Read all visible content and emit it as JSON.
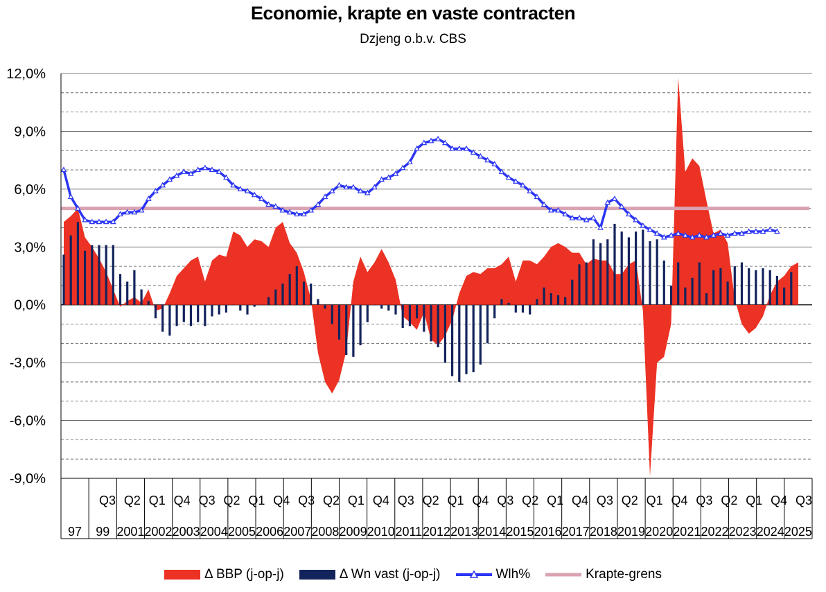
{
  "chart_data": {
    "type": "area",
    "title": "Economie, krapte en vaste contracten",
    "subtitle": "Dzjeng o.b.v. CBS",
    "ylim": [
      -9.0,
      12.0
    ],
    "y_ticks": [
      "12,0%",
      "9,0%",
      "6,0%",
      "3,0%",
      "0,0%",
      "-3,0%",
      "-6,0%",
      "-9,0%"
    ],
    "y_tick_values": [
      12,
      9,
      6,
      3,
      0,
      -3,
      -6,
      -9
    ],
    "grid": "dashed horizontal lines every 1.0 point",
    "x_start": "1999 Q1",
    "x_end": "2025 Q3",
    "quarter_labels": [
      "Q3",
      "Q2",
      "Q1",
      "Q4",
      "Q3",
      "Q2",
      "Q1",
      "Q4",
      "Q3",
      "Q2",
      "Q1",
      "Q4",
      "Q3",
      "Q2",
      "Q1",
      "Q4",
      "Q3",
      "Q2",
      "Q1",
      "Q4",
      "Q3",
      "Q2",
      "Q1",
      "Q4",
      "Q3",
      "Q2",
      "Q1",
      "Q4",
      "Q3"
    ],
    "year_labels": [
      "97",
      "99",
      "2001",
      "2002",
      "2003",
      "2004",
      "2005",
      "2006",
      "2007",
      "2008",
      "2009",
      "2010",
      "2011",
      "2012",
      "2013",
      "2014",
      "2015",
      "2016",
      "2017",
      "2018",
      "2019",
      "2020",
      "2021",
      "2022",
      "2023",
      "2024",
      "2025"
    ],
    "legend_position": "bottom",
    "series": [
      {
        "name": "Δ BBP (j-op-j)",
        "kind": "area",
        "color": "#ec3224",
        "values": [
          4.3,
          4.6,
          5.0,
          3.5,
          3.0,
          2.4,
          1.7,
          0.8,
          -0.1,
          0.2,
          0.4,
          0.1,
          0.8,
          -0.3,
          -0.2,
          0.6,
          1.5,
          1.9,
          2.3,
          2.5,
          1.2,
          2.3,
          2.6,
          2.5,
          3.8,
          3.6,
          3.0,
          3.4,
          3.3,
          3.0,
          4.0,
          4.3,
          3.2,
          2.7,
          1.7,
          0.3,
          -2.5,
          -4.0,
          -4.6,
          -3.9,
          -2.4,
          1.2,
          2.5,
          1.7,
          2.2,
          2.9,
          2.2,
          1.3,
          -0.6,
          -0.9,
          -1.3,
          -0.4,
          -1.8,
          -2.1,
          -1.6,
          -0.8,
          0.6,
          1.5,
          1.7,
          1.6,
          1.9,
          1.9,
          2.1,
          2.5,
          1.2,
          2.3,
          2.3,
          2.1,
          2.5,
          3.0,
          3.2,
          3.0,
          2.7,
          2.7,
          2.1,
          2.4,
          2.3,
          2.3,
          1.6,
          1.6,
          2.1,
          2.3,
          -0.3,
          -8.9,
          -3.0,
          -2.7,
          -1.0,
          11.8,
          6.9,
          7.6,
          7.2,
          5.4,
          3.7,
          3.9,
          3.2,
          0.3,
          -1.0,
          -1.5,
          -1.2,
          -0.6,
          0.5,
          1.2,
          1.5,
          2.0,
          2.2
        ],
        "estimated": true
      },
      {
        "name": "Δ Wn vast (j-op-j)",
        "kind": "bar",
        "color": "#13235c",
        "values": [
          2.6,
          3.6,
          4.3,
          2.8,
          3.1,
          3.1,
          3.1,
          3.1,
          1.6,
          1.2,
          1.8,
          0.8,
          0.2,
          -0.7,
          -1.4,
          -1.6,
          -1.1,
          -0.9,
          -1.1,
          -0.9,
          -1.1,
          -0.6,
          -0.5,
          -0.4,
          0.0,
          -0.3,
          -0.5,
          -0.1,
          0.0,
          0.4,
          0.8,
          1.1,
          1.6,
          2.0,
          1.2,
          1.1,
          0.3,
          -0.2,
          -1.0,
          -1.8,
          -2.6,
          -2.7,
          -2.1,
          -0.9,
          0.0,
          -0.2,
          -0.3,
          -0.5,
          -1.2,
          -1.1,
          -0.7,
          -1.4,
          -1.9,
          -2.2,
          -3.0,
          -3.7,
          -4.0,
          -3.6,
          -3.5,
          -3.1,
          -2.0,
          -0.7,
          0.3,
          0.1,
          -0.4,
          -0.4,
          -0.5,
          0.3,
          0.9,
          0.6,
          0.5,
          0.4,
          1.3,
          2.1,
          2.2,
          3.4,
          3.2,
          3.4,
          4.2,
          3.8,
          3.5,
          3.8,
          3.9,
          3.3,
          3.4,
          2.3,
          1.0,
          2.2,
          0.9,
          1.4,
          2.2,
          0.6,
          1.8,
          1.9,
          1.2,
          2.0,
          2.2,
          1.9,
          1.8,
          1.9,
          1.8,
          1.5,
          0.9,
          1.7
        ],
        "estimated": true
      },
      {
        "name": "Wlh%",
        "kind": "line",
        "color": "#2b35f2",
        "marker": "triangle",
        "values": [
          7.0,
          5.6,
          5.0,
          4.4,
          4.3,
          4.3,
          4.3,
          4.3,
          4.7,
          4.8,
          4.8,
          4.9,
          5.5,
          5.9,
          6.2,
          6.5,
          6.7,
          6.9,
          6.8,
          7.0,
          7.1,
          7.0,
          6.9,
          6.6,
          6.2,
          6.0,
          5.9,
          5.7,
          5.5,
          5.2,
          5.1,
          4.9,
          4.8,
          4.7,
          4.7,
          4.9,
          5.2,
          5.6,
          5.9,
          6.2,
          6.1,
          6.1,
          5.9,
          5.8,
          6.1,
          6.5,
          6.6,
          6.8,
          7.1,
          7.4,
          8.1,
          8.4,
          8.5,
          8.6,
          8.4,
          8.1,
          8.1,
          8.1,
          7.9,
          7.7,
          7.5,
          7.3,
          6.9,
          6.6,
          6.4,
          6.2,
          5.9,
          5.6,
          5.2,
          4.9,
          4.9,
          4.7,
          4.5,
          4.5,
          4.4,
          4.5,
          4.0,
          5.3,
          5.5,
          5.1,
          4.7,
          4.4,
          4.1,
          3.9,
          3.7,
          3.5,
          3.6,
          3.7,
          3.6,
          3.5,
          3.6,
          3.5,
          3.6,
          3.7,
          3.6,
          3.7,
          3.7,
          3.8,
          3.8,
          3.8,
          3.9,
          3.8
        ],
        "estimated": true
      },
      {
        "name": "Krapte-grens",
        "kind": "line",
        "color": "#d9a3b2",
        "value": 5.0
      }
    ]
  },
  "legend": {
    "gdp": "Δ BBP (j-op-j)",
    "contracts": "Δ Wn vast (j-op-j)",
    "unemployment": "Wlh%",
    "threshold": "Krapte-grens"
  }
}
